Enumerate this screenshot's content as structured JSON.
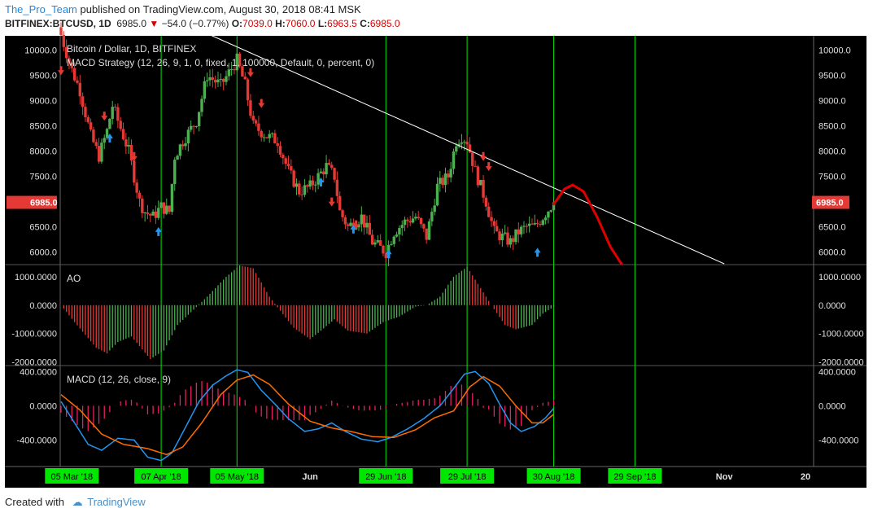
{
  "header": {
    "author": "The_Pro_Team",
    "published_text": "published on TradingView.com, August 30, 2018 08:41 MSK",
    "symbol": "BITFINEX:BTCUSD, 1D",
    "last": "6985.0",
    "change": "−54.0 (−0.77%)",
    "open_label": "O:",
    "open": "7039.0",
    "high_label": "H:",
    "high": "7060.0",
    "low_label": "L:",
    "low": "6963.5",
    "close_label": "C:",
    "close": "6985.0"
  },
  "footer": {
    "created_with": "Created with",
    "brand": "TradingView"
  },
  "colors": {
    "background": "#000000",
    "up": "#4caf50",
    "down": "#e53935",
    "vline": "#00e600",
    "trendline": "#ffffff",
    "projection": "#e00000",
    "macd": "#2196f3",
    "signal": "#ff6d00",
    "hist": "#e91e63",
    "price_badge": "#e53935",
    "date_badge": "#00e600"
  },
  "chart_data": [
    {
      "type": "candlestick",
      "title": "Bitcoin / Dollar, 1D, BITFINEX",
      "subtitle": "MACD Strategy (12, 26, 9, 1, 0, fixed, 1, 100000, Default, 0, percent, 0)",
      "y_ticks": [
        "10000.0",
        "9500.0",
        "9000.0",
        "8500.0",
        "8000.0",
        "7500.0",
        "7000.0",
        "6500.0",
        "6000.0"
      ],
      "ylim": [
        5770,
        10280
      ],
      "last_price_label": "6985.0",
      "x_labels": [
        "05 Mar '18",
        "07 Apr '18",
        "05 May '18",
        "Jun",
        "29 Jun '18",
        "29 Jul '18",
        "30 Aug '18",
        "29 Sep '18",
        "Nov",
        "20"
      ],
      "x_dates": [
        "2018-03-05",
        "2018-04-07",
        "2018-05-05",
        "2018-06-01",
        "2018-06-29",
        "2018-07-29",
        "2018-08-30",
        "2018-09-29",
        "2018-11-01",
        "2018-12-01"
      ],
      "vertical_markers": [
        "2018-04-07",
        "2018-05-05",
        "2018-06-29",
        "2018-07-29",
        "2018-08-30",
        "2018-09-29"
      ],
      "close_path": [
        [
          "2018-03-01",
          10300
        ],
        [
          "2018-03-05",
          9600
        ],
        [
          "2018-03-08",
          9200
        ],
        [
          "2018-03-12",
          8300
        ],
        [
          "2018-03-15",
          7900
        ],
        [
          "2018-03-18",
          8400
        ],
        [
          "2018-03-20",
          8900
        ],
        [
          "2018-03-24",
          8300
        ],
        [
          "2018-03-26",
          8000
        ],
        [
          "2018-03-30",
          7000
        ],
        [
          "2018-04-01",
          6800
        ],
        [
          "2018-04-04",
          6700
        ],
        [
          "2018-04-07",
          6900
        ],
        [
          "2018-04-10",
          6800
        ],
        [
          "2018-04-12",
          7900
        ],
        [
          "2018-04-15",
          8200
        ],
        [
          "2018-04-20",
          8600
        ],
        [
          "2018-04-24",
          9500
        ],
        [
          "2018-04-29",
          9300
        ],
        [
          "2018-05-05",
          9800
        ],
        [
          "2018-05-08",
          9300
        ],
        [
          "2018-05-11",
          8500
        ],
        [
          "2018-05-16",
          8300
        ],
        [
          "2018-05-20",
          8200
        ],
        [
          "2018-05-24",
          7600
        ],
        [
          "2018-05-28",
          7200
        ],
        [
          "2018-06-01",
          7300
        ],
        [
          "2018-06-07",
          7700
        ],
        [
          "2018-06-10",
          7500
        ],
        [
          "2018-06-12",
          6800
        ],
        [
          "2018-06-15",
          6500
        ],
        [
          "2018-06-20",
          6700
        ],
        [
          "2018-06-24",
          6200
        ],
        [
          "2018-06-29",
          6000
        ],
        [
          "2018-07-02",
          6400
        ],
        [
          "2018-07-06",
          6600
        ],
        [
          "2018-07-10",
          6700
        ],
        [
          "2018-07-14",
          6300
        ],
        [
          "2018-07-18",
          7300
        ],
        [
          "2018-07-22",
          7500
        ],
        [
          "2018-07-25",
          8200
        ],
        [
          "2018-07-27",
          8300
        ],
        [
          "2018-07-29",
          8200
        ],
        [
          "2018-08-01",
          7600
        ],
        [
          "2018-08-05",
          7000
        ],
        [
          "2018-08-08",
          6400
        ],
        [
          "2018-08-11",
          6300
        ],
        [
          "2018-08-14",
          6200
        ],
        [
          "2018-08-17",
          6400
        ],
        [
          "2018-08-20",
          6500
        ],
        [
          "2018-08-23",
          6500
        ],
        [
          "2018-08-26",
          6700
        ],
        [
          "2018-08-30",
          6985
        ]
      ],
      "signals": [
        {
          "date": "2018-03-01",
          "dir": "sell",
          "price": 9600
        },
        {
          "date": "2018-03-17",
          "dir": "sell",
          "price": 8700
        },
        {
          "date": "2018-03-19",
          "dir": "buy",
          "price": 8250
        },
        {
          "date": "2018-03-28",
          "dir": "sell",
          "price": 7900
        },
        {
          "date": "2018-04-06",
          "dir": "buy",
          "price": 6400
        },
        {
          "date": "2018-05-10",
          "dir": "sell",
          "price": 9560
        },
        {
          "date": "2018-05-14",
          "dir": "sell",
          "price": 8950
        },
        {
          "date": "2018-06-05",
          "dir": "buy",
          "price": 7380
        },
        {
          "date": "2018-06-09",
          "dir": "sell",
          "price": 7000
        },
        {
          "date": "2018-06-17",
          "dir": "buy",
          "price": 6450
        },
        {
          "date": "2018-06-18",
          "dir": "sell",
          "price": 6550
        },
        {
          "date": "2018-06-30",
          "dir": "buy",
          "price": 5960
        },
        {
          "date": "2018-08-04",
          "dir": "sell",
          "price": 7900
        },
        {
          "date": "2018-08-06",
          "dir": "sell",
          "price": 7700
        },
        {
          "date": "2018-08-24",
          "dir": "buy",
          "price": 5990
        }
      ],
      "trendline": [
        [
          "2018-04-25",
          10300
        ],
        [
          "2018-11-01",
          5770
        ]
      ],
      "projection": [
        [
          "2018-08-30",
          6950
        ],
        [
          "2018-09-03",
          7250
        ],
        [
          "2018-09-06",
          7330
        ],
        [
          "2018-09-10",
          7200
        ],
        [
          "2018-09-15",
          6700
        ],
        [
          "2018-09-20",
          6100
        ],
        [
          "2018-09-24",
          5770
        ]
      ]
    },
    {
      "type": "bar",
      "title": "AO",
      "y_ticks": [
        "1000.0000",
        "0.0000",
        "-1000.0000",
        "-2000.0000"
      ],
      "ylim": [
        -2100,
        1400
      ],
      "series": [
        {
          "values_path": [
            [
              "2018-03-01",
              0
            ],
            [
              "2018-03-06",
              -600
            ],
            [
              "2018-03-14",
              -1500
            ],
            [
              "2018-03-18",
              -1700
            ],
            [
              "2018-03-22",
              -1300
            ],
            [
              "2018-03-27",
              -1100
            ],
            [
              "2018-04-03",
              -1900
            ],
            [
              "2018-04-08",
              -1600
            ],
            [
              "2018-04-13",
              -700
            ],
            [
              "2018-04-18",
              -250
            ],
            [
              "2018-04-24",
              300
            ],
            [
              "2018-05-01",
              1000
            ],
            [
              "2018-05-06",
              1400
            ],
            [
              "2018-05-11",
              1300
            ],
            [
              "2018-05-17",
              300
            ],
            [
              "2018-05-21",
              -200
            ],
            [
              "2018-05-26",
              -800
            ],
            [
              "2018-06-01",
              -1200
            ],
            [
              "2018-06-05",
              -900
            ],
            [
              "2018-06-10",
              -500
            ],
            [
              "2018-06-15",
              -900
            ],
            [
              "2018-06-22",
              -1000
            ],
            [
              "2018-06-28",
              -600
            ],
            [
              "2018-07-04",
              -400
            ],
            [
              "2018-07-10",
              -50
            ],
            [
              "2018-07-14",
              0
            ],
            [
              "2018-07-19",
              300
            ],
            [
              "2018-07-24",
              1000
            ],
            [
              "2018-07-29",
              1350
            ],
            [
              "2018-08-03",
              600
            ],
            [
              "2018-08-07",
              0
            ],
            [
              "2018-08-12",
              -700
            ],
            [
              "2018-08-16",
              -850
            ],
            [
              "2018-08-22",
              -700
            ],
            [
              "2018-08-26",
              -300
            ],
            [
              "2018-08-30",
              -60
            ]
          ]
        }
      ]
    },
    {
      "type": "line",
      "title": "MACD (12, 26, close, 9)",
      "y_ticks": [
        "400.0000",
        "0.0000",
        "-400.0000"
      ],
      "ylim": [
        -700,
        460
      ],
      "series": [
        {
          "name": "MACD",
          "values_path": [
            [
              "2018-03-01",
              50
            ],
            [
              "2018-03-06",
              -200
            ],
            [
              "2018-03-11",
              -450
            ],
            [
              "2018-03-16",
              -520
            ],
            [
              "2018-03-22",
              -380
            ],
            [
              "2018-03-28",
              -400
            ],
            [
              "2018-04-02",
              -600
            ],
            [
              "2018-04-07",
              -640
            ],
            [
              "2018-04-11",
              -550
            ],
            [
              "2018-04-16",
              -250
            ],
            [
              "2018-04-21",
              50
            ],
            [
              "2018-04-26",
              240
            ],
            [
              "2018-05-01",
              350
            ],
            [
              "2018-05-05",
              420
            ],
            [
              "2018-05-09",
              390
            ],
            [
              "2018-05-14",
              180
            ],
            [
              "2018-05-19",
              20
            ],
            [
              "2018-05-24",
              -150
            ],
            [
              "2018-05-30",
              -300
            ],
            [
              "2018-06-04",
              -270
            ],
            [
              "2018-06-09",
              -200
            ],
            [
              "2018-06-14",
              -300
            ],
            [
              "2018-06-20",
              -390
            ],
            [
              "2018-06-26",
              -420
            ],
            [
              "2018-07-01",
              -370
            ],
            [
              "2018-07-07",
              -270
            ],
            [
              "2018-07-13",
              -150
            ],
            [
              "2018-07-19",
              0
            ],
            [
              "2018-07-24",
              200
            ],
            [
              "2018-07-28",
              370
            ],
            [
              "2018-08-01",
              400
            ],
            [
              "2018-08-06",
              260
            ],
            [
              "2018-08-10",
              20
            ],
            [
              "2018-08-14",
              -200
            ],
            [
              "2018-08-18",
              -300
            ],
            [
              "2018-08-23",
              -240
            ],
            [
              "2018-08-27",
              -140
            ],
            [
              "2018-08-30",
              -30
            ]
          ]
        },
        {
          "name": "Signal",
          "values_path": [
            [
              "2018-03-01",
              130
            ],
            [
              "2018-03-08",
              -50
            ],
            [
              "2018-03-16",
              -330
            ],
            [
              "2018-03-24",
              -450
            ],
            [
              "2018-04-02",
              -500
            ],
            [
              "2018-04-09",
              -570
            ],
            [
              "2018-04-15",
              -480
            ],
            [
              "2018-04-22",
              -200
            ],
            [
              "2018-04-29",
              130
            ],
            [
              "2018-05-05",
              300
            ],
            [
              "2018-05-11",
              360
            ],
            [
              "2018-05-17",
              250
            ],
            [
              "2018-05-24",
              20
            ],
            [
              "2018-06-01",
              -180
            ],
            [
              "2018-06-09",
              -260
            ],
            [
              "2018-06-16",
              -300
            ],
            [
              "2018-06-24",
              -360
            ],
            [
              "2018-07-02",
              -370
            ],
            [
              "2018-07-10",
              -280
            ],
            [
              "2018-07-17",
              -140
            ],
            [
              "2018-07-24",
              -60
            ],
            [
              "2018-07-30",
              220
            ],
            [
              "2018-08-04",
              340
            ],
            [
              "2018-08-10",
              230
            ],
            [
              "2018-08-16",
              0
            ],
            [
              "2018-08-22",
              -200
            ],
            [
              "2018-08-26",
              -200
            ],
            [
              "2018-08-30",
              -100
            ]
          ]
        }
      ]
    }
  ]
}
